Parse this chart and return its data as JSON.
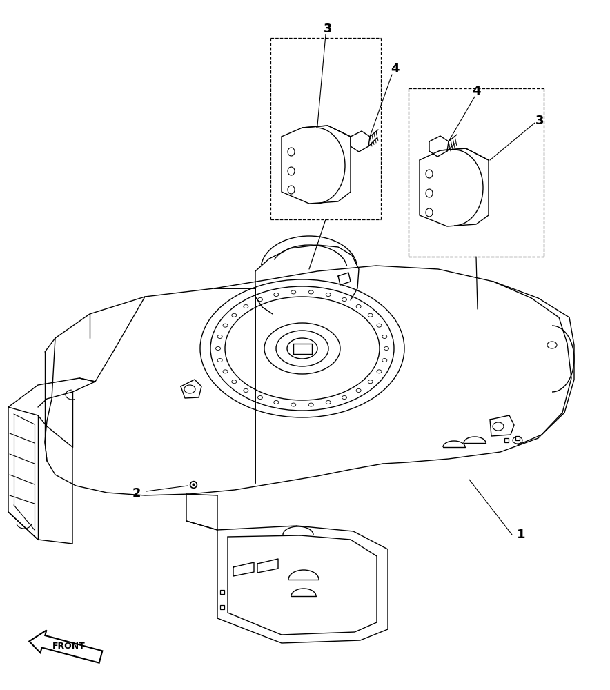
{
  "bg": "#ffffff",
  "lc": "#000000",
  "lw": 1.0,
  "label_fs": 13,
  "front_text": "FRONT"
}
